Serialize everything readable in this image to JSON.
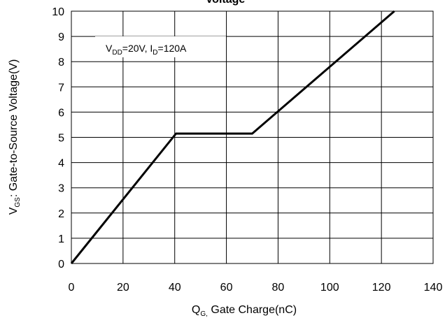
{
  "chart_data": {
    "type": "line",
    "title": "Voltage",
    "xlabel": {
      "main": "Q",
      "sub": "G,",
      "rest": " Gate Charge(nC)"
    },
    "ylabel": {
      "main": "V",
      "sub": "GS",
      "rest": ": Gate-to-Source Voltage(V)"
    },
    "xlim": [
      0,
      140
    ],
    "ylim": [
      0,
      10
    ],
    "x_ticks": [
      0,
      20,
      40,
      60,
      80,
      100,
      120,
      140
    ],
    "y_ticks": [
      0,
      1,
      2,
      3,
      4,
      5,
      6,
      7,
      8,
      9,
      10
    ],
    "grid": true,
    "annotation": {
      "v": "V",
      "v_sub": "DD",
      "v_rest": "=20V, I",
      "i_sub": "D",
      "i_rest": "=120A"
    },
    "series": [
      {
        "x": [
          0,
          40.5,
          70,
          125
        ],
        "y": [
          0,
          5.15,
          5.15,
          10
        ],
        "color": "#000000"
      }
    ]
  }
}
